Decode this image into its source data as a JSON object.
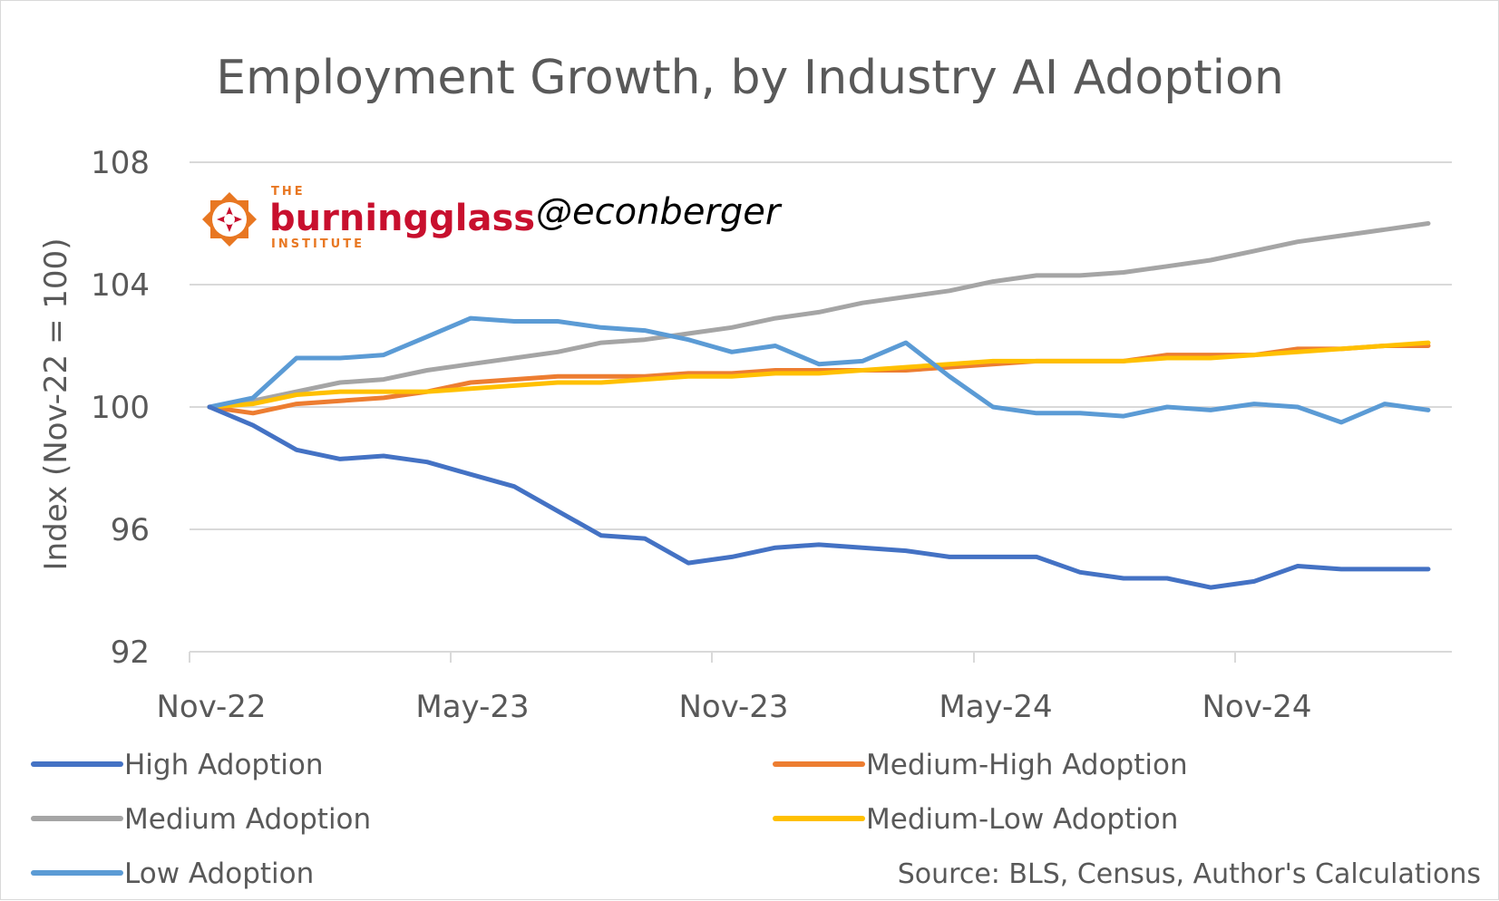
{
  "chart_data": {
    "type": "line",
    "title": "Employment Growth, by Industry AI Adoption",
    "ylabel": "Index (Nov-22 = 100)",
    "xlabel": "",
    "ylim": [
      92,
      108
    ],
    "yticks": [
      "108",
      "104",
      "100",
      "96",
      "92"
    ],
    "ytick_values": [
      108,
      104,
      100,
      96,
      92
    ],
    "xtick_labels": [
      "Nov-22",
      "May-23",
      "Nov-23",
      "May-24",
      "Nov-24"
    ],
    "xtick_months": [
      0,
      6,
      12,
      18,
      24
    ],
    "grid": true,
    "legend_position": "bottom",
    "x": [
      "Nov-22",
      "Dec-22",
      "Jan-23",
      "Feb-23",
      "Mar-23",
      "Apr-23",
      "May-23",
      "Jun-23",
      "Jul-23",
      "Aug-23",
      "Sep-23",
      "Oct-23",
      "Nov-23",
      "Dec-23",
      "Jan-24",
      "Feb-24",
      "Mar-24",
      "Apr-24",
      "May-24",
      "Jun-24",
      "Jul-24",
      "Aug-24",
      "Sep-24",
      "Oct-24",
      "Nov-24",
      "Dec-24",
      "Jan-25",
      "Feb-25",
      "Mar-25"
    ],
    "series": [
      {
        "name": "High Adoption",
        "color": "#4472c4",
        "values": [
          100,
          99.4,
          98.6,
          98.3,
          98.4,
          98.2,
          97.8,
          97.4,
          96.6,
          95.8,
          95.7,
          94.9,
          95.1,
          95.4,
          95.5,
          95.4,
          95.3,
          95.1,
          95.1,
          95.1,
          94.6,
          94.4,
          94.4,
          94.1,
          94.3,
          94.8,
          94.7,
          94.7,
          94.7
        ]
      },
      {
        "name": "Medium-High Adoption",
        "color": "#ed7d31",
        "values": [
          100,
          99.8,
          100.1,
          100.2,
          100.3,
          100.5,
          100.8,
          100.9,
          101.0,
          101.0,
          101.0,
          101.1,
          101.1,
          101.2,
          101.2,
          101.2,
          101.2,
          101.3,
          101.4,
          101.5,
          101.5,
          101.5,
          101.7,
          101.7,
          101.7,
          101.9,
          101.9,
          102.0,
          102.0
        ]
      },
      {
        "name": "Medium Adoption",
        "color": "#a5a5a5",
        "values": [
          100,
          100.2,
          100.5,
          100.8,
          100.9,
          101.2,
          101.4,
          101.6,
          101.8,
          102.1,
          102.2,
          102.4,
          102.6,
          102.9,
          103.1,
          103.4,
          103.6,
          103.8,
          104.1,
          104.3,
          104.3,
          104.4,
          104.6,
          104.8,
          105.1,
          105.4,
          105.6,
          105.8,
          106.0
        ]
      },
      {
        "name": "Medium-Low Adoption",
        "color": "#ffc000",
        "values": [
          100,
          100.1,
          100.4,
          100.5,
          100.5,
          100.5,
          100.6,
          100.7,
          100.8,
          100.8,
          100.9,
          101.0,
          101.0,
          101.1,
          101.1,
          101.2,
          101.3,
          101.4,
          101.5,
          101.5,
          101.5,
          101.5,
          101.6,
          101.6,
          101.7,
          101.8,
          101.9,
          102.0,
          102.1
        ]
      },
      {
        "name": "Low Adoption",
        "color": "#5b9bd5",
        "values": [
          100,
          100.3,
          101.6,
          101.6,
          101.7,
          102.3,
          102.9,
          102.8,
          102.8,
          102.6,
          102.5,
          102.2,
          101.8,
          102.0,
          101.4,
          101.5,
          102.1,
          101.0,
          100.0,
          99.8,
          99.8,
          99.7,
          100.0,
          99.9,
          100.1,
          100.0,
          99.5,
          100.1,
          99.9
        ]
      }
    ]
  },
  "branding": {
    "logo_name": "burningglass",
    "logo_top": "THE",
    "logo_bottom": "INSTITUTE",
    "handle": "@econberger"
  },
  "source_note": "Source: BLS, Census, Author's Calculations",
  "colors": {
    "grid": "#d9d9d9",
    "axis": "#d9d9d9",
    "text": "#595959",
    "brand_red": "#c8102e",
    "brand_orange": "#e87722"
  }
}
